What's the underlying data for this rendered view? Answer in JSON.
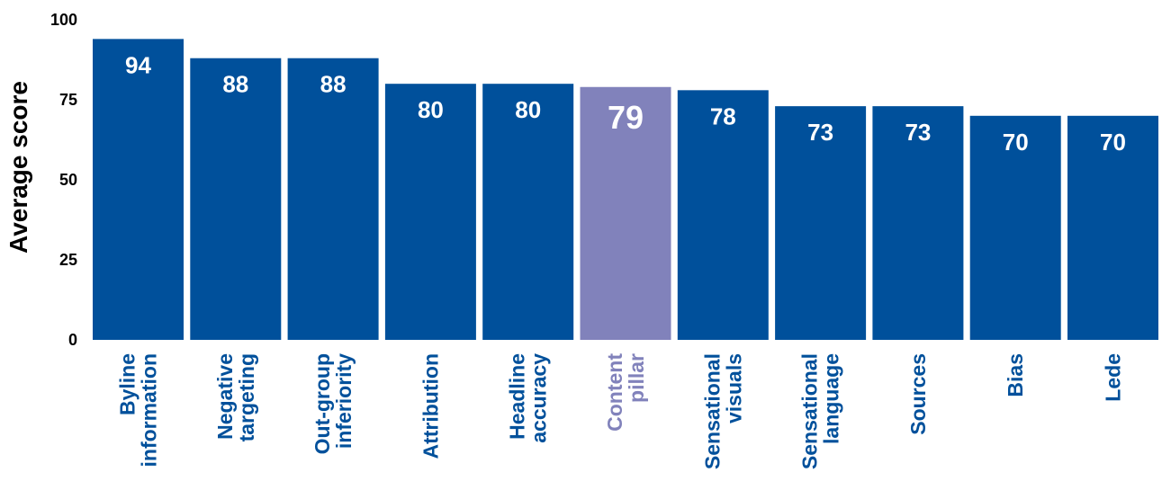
{
  "chart_data": {
    "type": "bar",
    "categories": [
      [
        "Byline",
        "information"
      ],
      [
        "Negative",
        "targeting"
      ],
      [
        "Out-group",
        "inferiority"
      ],
      [
        "Attribution"
      ],
      [
        "Headline",
        "accuracy"
      ],
      [
        "Content",
        "pillar"
      ],
      [
        "Sensational",
        "visuals"
      ],
      [
        "Sensational",
        "language"
      ],
      [
        "Sources"
      ],
      [
        "Bias"
      ],
      [
        "Lede"
      ]
    ],
    "values": [
      94,
      88,
      88,
      80,
      80,
      79,
      78,
      73,
      73,
      70,
      70
    ],
    "highlight_index": 5,
    "ylabel": "Average score",
    "ylim": [
      0,
      100
    ],
    "yticks": [
      0,
      25,
      50,
      75,
      100
    ],
    "grid": false,
    "colors": {
      "bar": "#00509b",
      "highlight": "#8182bb",
      "value_label": "#ffffff",
      "category_label": "#00509b",
      "axis_text": "#000000"
    }
  }
}
